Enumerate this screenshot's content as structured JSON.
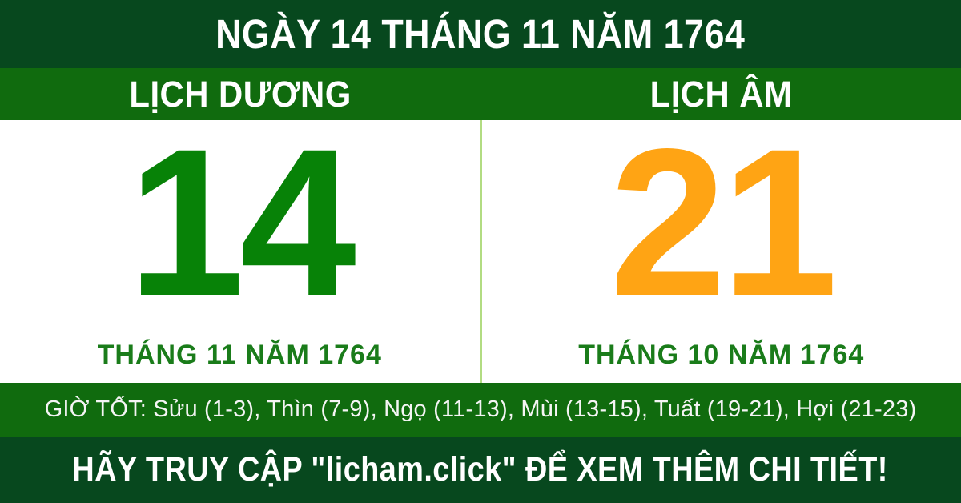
{
  "header": {
    "title": "NGÀY 14 THÁNG 11 NĂM 1764"
  },
  "calendar": {
    "solar": {
      "label": "LỊCH DƯƠNG",
      "day": "14",
      "subtitle": "THÁNG 11 NĂM 1764"
    },
    "lunar": {
      "label": "LỊCH ÂM",
      "day": "21",
      "subtitle": "THÁNG 10 NĂM 1764"
    }
  },
  "good_hours": {
    "text": "GIỜ TỐT: Sửu (1-3), Thìn (7-9), Ngọ (11-13), Mùi (13-15), Tuất (19-21), Hợi (21-23)"
  },
  "footer": {
    "text": "HÃY TRUY CẬP \"licham.click\" ĐỂ XEM THÊM CHI TIẾT!"
  },
  "colors": {
    "dark_green": "#07481e",
    "green": "#106b0e",
    "divider": "#b2dc82",
    "number_green": "#078207",
    "number_orange": "#ffa414",
    "subtitle_green": "#1a7c1a"
  }
}
